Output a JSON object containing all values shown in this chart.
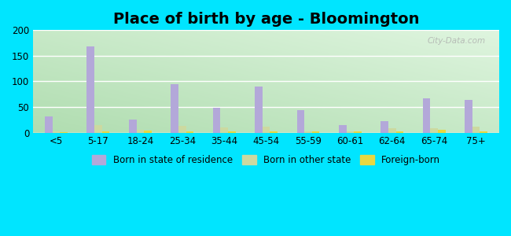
{
  "title": "Place of birth by age - Bloomington",
  "categories": [
    "<5",
    "5-17",
    "18-24",
    "25-34",
    "35-44",
    "45-54",
    "55-59",
    "60-61",
    "62-64",
    "65-74",
    "75+"
  ],
  "born_in_state": [
    32,
    168,
    25,
    95,
    48,
    90,
    44,
    15,
    22,
    67,
    63
  ],
  "born_other_state": [
    2,
    14,
    6,
    13,
    10,
    12,
    2,
    3,
    8,
    8,
    11
  ],
  "foreign_born": [
    1,
    2,
    4,
    3,
    3,
    2,
    2,
    2,
    2,
    5,
    2
  ],
  "bar_colors": {
    "born_in_state": "#b3a8d9",
    "born_other_state": "#ccd9a0",
    "foreign_born": "#e8d840"
  },
  "legend_labels": [
    "Born in state of residence",
    "Born in other state",
    "Foreign-born"
  ],
  "ylim": [
    0,
    200
  ],
  "yticks": [
    0,
    50,
    100,
    150,
    200
  ],
  "outer_bg": "#00e5ff",
  "title_fontsize": 14,
  "bar_width": 0.18
}
